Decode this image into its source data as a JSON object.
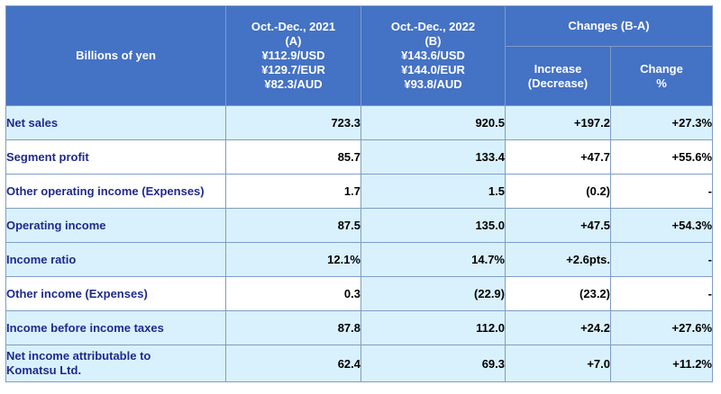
{
  "header": {
    "unit_label": "Billions of yen",
    "col_a": [
      "Oct.-Dec., 2021",
      "(A)",
      "¥112.9/USD",
      "¥129.7/EUR",
      "¥82.3/AUD"
    ],
    "col_b": [
      "Oct.-Dec., 2022",
      "(B)",
      "¥143.6/USD",
      "¥144.0/EUR",
      "¥93.8/AUD"
    ],
    "changes": "Changes (B-A)",
    "increase": [
      "Increase",
      "(Decrease)"
    ],
    "change_pct": [
      "Change",
      "%"
    ]
  },
  "rows": [
    {
      "label": [
        "Net sales"
      ],
      "a": "723.3",
      "b": "920.5",
      "inc": "+197.2",
      "pct": "+27.3%"
    },
    {
      "label": [
        "Segment profit"
      ],
      "a": "85.7",
      "b": "133.4",
      "inc": "+47.7",
      "pct": "+55.6%"
    },
    {
      "label": [
        "Other operating income (Expenses)"
      ],
      "a": "1.7",
      "b": "1.5",
      "inc": "(0.2)",
      "pct": "-"
    },
    {
      "label": [
        "Operating income"
      ],
      "a": "87.5",
      "b": "135.0",
      "inc": "+47.5",
      "pct": "+54.3%"
    },
    {
      "label": [
        "Income ratio"
      ],
      "a": "12.1%",
      "b": "14.7%",
      "inc": "+2.6pts.",
      "pct": "-"
    },
    {
      "label": [
        "Other income (Expenses)"
      ],
      "a": "0.3",
      "b": "(22.9)",
      "inc": "(23.2)",
      "pct": "-"
    },
    {
      "label": [
        "Income before income taxes"
      ],
      "a": "87.8",
      "b": "112.0",
      "inc": "+24.2",
      "pct": "+27.6%"
    },
    {
      "label": [
        "Net income attributable to",
        "Komatsu Ltd."
      ],
      "a": "62.4",
      "b": "69.3",
      "inc": "+7.0",
      "pct": "+11.2%"
    }
  ],
  "colors": {
    "header_bg": "#4472c4",
    "row_blue": "#d9f1fd",
    "label_text": "#1f2a8c"
  }
}
